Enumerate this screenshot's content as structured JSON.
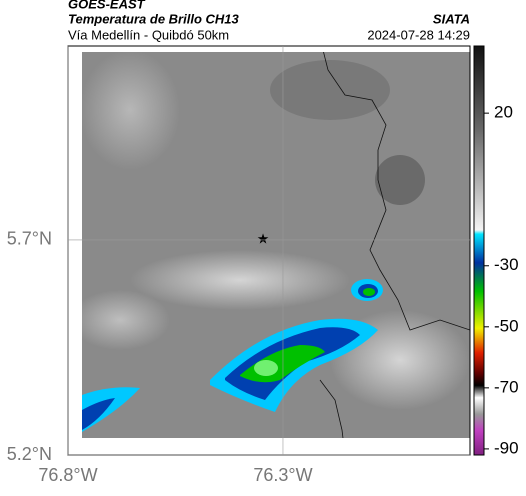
{
  "header": {
    "source": "GOES-EAST",
    "title": "Temperatura de Brillo CH13",
    "subtitle": "Vía Medellín - Quibdó 50km",
    "agency": "SIATA",
    "datetime": "2024-07-28 14:29"
  },
  "map": {
    "xlim": [
      -76.8,
      -75.865
    ],
    "ylim": [
      5.2,
      6.151
    ],
    "xticks": [
      {
        "value": -76.8,
        "label": "76.8°W"
      },
      {
        "value": -76.3,
        "label": "76.3°W"
      }
    ],
    "yticks": [
      {
        "value": 5.2,
        "label": "5.2°N"
      },
      {
        "value": 5.7,
        "label": "5.7°N"
      }
    ]
  },
  "colorbar": {
    "lim": [
      42,
      -92
    ],
    "ticks": [
      20,
      -30,
      -50,
      -70,
      -90
    ]
  }
}
